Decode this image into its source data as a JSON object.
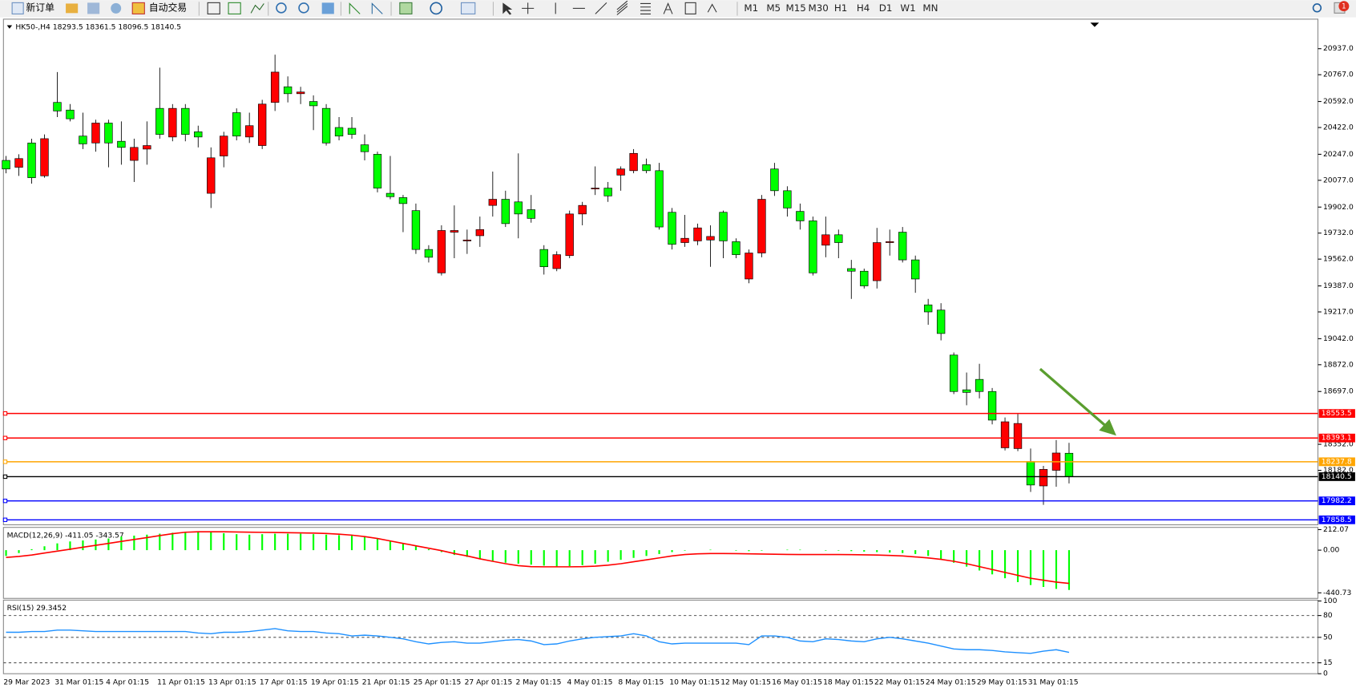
{
  "toolbar": {
    "buttons": [
      "新订单",
      "自动交易"
    ],
    "timeframes": [
      "M1",
      "M5",
      "M15",
      "M30",
      "H1",
      "H4",
      "D1",
      "W1",
      "MN"
    ],
    "badge": 1
  },
  "chart_data": [
    {
      "type": "candlestick",
      "title": "HK50-,H4",
      "categories": [
        "29 Mar 2023",
        null,
        null,
        null,
        "31 Mar 01:15",
        null,
        null,
        null,
        "4 Apr 01:15",
        null,
        null,
        null,
        "11 Apr 01:15",
        null,
        null,
        null,
        "13 Apr 01:15",
        null,
        null,
        null,
        "17 Apr 01:15",
        null,
        null,
        null,
        "19 Apr 01:15",
        null,
        null,
        null,
        "21 Apr 01:15",
        null,
        null,
        null,
        "25 Apr 01:15",
        null,
        null,
        null,
        "27 Apr 01:15",
        null,
        null,
        null,
        "2 May 01:15",
        null,
        null,
        null,
        "4 May 01:15",
        null,
        null,
        null,
        "8 May 01:15",
        null,
        null,
        null,
        "10 May 01:15",
        null,
        null,
        null,
        "12 May 01:15",
        null,
        null,
        null,
        "16 May 01:15",
        null,
        null,
        null,
        "18 May 01:15",
        null,
        null,
        null,
        "22 May 01:15",
        null,
        null,
        null,
        "24 May 01:15",
        null,
        null,
        null,
        "29 May 01:15",
        null,
        null,
        null,
        "31 May 01:15",
        null,
        null,
        null
      ],
      "open": [
        20207,
        20162,
        20321,
        20106,
        20586,
        20536,
        20366,
        20321,
        20451,
        20332,
        20207,
        20281,
        20547,
        20360,
        20547,
        20394,
        19992,
        20236,
        20519,
        20360,
        20304,
        20586,
        20688,
        20643,
        20592,
        20547,
        20422,
        20417,
        20309,
        20247,
        19992,
        19964,
        19879,
        19625,
        19472,
        19738,
        19681,
        19715,
        19913,
        19953,
        19936,
        19885,
        19625,
        19500,
        19585,
        19857,
        20021,
        20026,
        20111,
        20140,
        20179,
        20140,
        19868,
        19670,
        19681,
        19687,
        19868,
        19676,
        19432,
        19602,
        20151,
        20009,
        19874,
        19812,
        19653,
        19721,
        19500,
        19483,
        19421,
        19670,
        19738,
        19557,
        19263,
        19229,
        18935,
        18708,
        18776,
        18697,
        18329,
        18324,
        18239,
        18080,
        18182,
        18293.5
      ],
      "high": [
        20236,
        20247,
        20349,
        20377,
        20784,
        20575,
        20519,
        20473,
        20473,
        20462,
        20349,
        20462,
        20813,
        20575,
        20575,
        20434,
        20292,
        20394,
        20547,
        20519,
        20603,
        20898,
        20756,
        20688,
        20632,
        20575,
        20490,
        20490,
        20377,
        20264,
        20236,
        19981,
        19925,
        19653,
        19783,
        19913,
        19755,
        19840,
        20134,
        20009,
        20253,
        19981,
        19653,
        19613,
        19879,
        19936,
        20168,
        20066,
        20168,
        20281,
        20219,
        20191,
        19896,
        19851,
        19794,
        19783,
        19879,
        19698,
        19625,
        19981,
        20191,
        20038,
        19925,
        19840,
        19840,
        19755,
        19557,
        19500,
        19766,
        19755,
        19772,
        19585,
        19302,
        19274,
        18952,
        18821,
        18878,
        18720,
        18527,
        18550,
        18324,
        18211,
        18380,
        18361.5
      ],
      "low": [
        20123,
        20106,
        20055,
        20094,
        20490,
        20462,
        20281,
        20264,
        20162,
        20179,
        20066,
        20179,
        20349,
        20332,
        20332,
        20292,
        19896,
        20162,
        20338,
        20321,
        20281,
        20530,
        20586,
        20575,
        20405,
        20304,
        20338,
        20349,
        20207,
        19998,
        19953,
        19738,
        19596,
        19540,
        19455,
        19568,
        19596,
        19642,
        19840,
        19772,
        19698,
        19800,
        19461,
        19483,
        19568,
        19783,
        19981,
        19936,
        20009,
        20123,
        20123,
        19755,
        19625,
        19642,
        19653,
        19512,
        19568,
        19568,
        19404,
        19574,
        19975,
        19840,
        19755,
        19455,
        19574,
        19568,
        19302,
        19370,
        19370,
        19585,
        19540,
        19342,
        19133,
        19031,
        18680,
        18607,
        18652,
        18482,
        18312,
        18307,
        18041,
        17956,
        18075,
        18096.5
      ],
      "close": [
        20151,
        20219,
        20094,
        20349,
        20530,
        20479,
        20315,
        20451,
        20321,
        20292,
        20292,
        20304,
        20377,
        20547,
        20377,
        20360,
        20224,
        20366,
        20366,
        20434,
        20575,
        20784,
        20643,
        20654,
        20564,
        20321,
        20366,
        20377,
        20264,
        20026,
        19970,
        19925,
        19625,
        19574,
        19749,
        19749,
        19687,
        19755,
        19953,
        19794,
        19857,
        19828,
        19512,
        19591,
        19857,
        19913,
        20026,
        19975,
        20151,
        20253,
        20140,
        19772,
        19659,
        19698,
        19766,
        19710,
        19681,
        19591,
        19602,
        19953,
        20009,
        19896,
        19812,
        19472,
        19721,
        19670,
        19483,
        19387,
        19670,
        19676,
        19557,
        19432,
        19217,
        19076,
        18697,
        18691,
        18697,
        18510,
        18499,
        18488,
        18086,
        18188,
        18295,
        18140.5
      ],
      "up_color": "#ff0000",
      "down_color": "#00ff00",
      "ylim": [
        17826,
        21130
      ],
      "yticks": [
        {
          "value": 20937,
          "label": "20937.0"
        },
        {
          "value": 20767,
          "label": "20767.0"
        },
        {
          "value": 20592,
          "label": "20592.0"
        },
        {
          "value": 20422,
          "label": "20422.0"
        },
        {
          "value": 20247,
          "label": "20247.0"
        },
        {
          "value": 20077,
          "label": "20077.0"
        },
        {
          "value": 19902,
          "label": "19902.0"
        },
        {
          "value": 19732,
          "label": "19732.0"
        },
        {
          "value": 19562,
          "label": "19562.0"
        },
        {
          "value": 19387,
          "label": "19387.0"
        },
        {
          "value": 19217,
          "label": "19217.0"
        },
        {
          "value": 19042,
          "label": "19042.0"
        },
        {
          "value": 18872,
          "label": "18872.0"
        },
        {
          "value": 18697,
          "label": "18697.0"
        },
        {
          "value": 18352,
          "label": "18352.0"
        },
        {
          "value": 18182,
          "label": "18182.0"
        }
      ],
      "levels": [
        {
          "value": 18553.5,
          "color": "#ff0000"
        },
        {
          "value": 18393.1,
          "color": "#ff0000"
        },
        {
          "value": 18237.8,
          "color": "#ffa500"
        },
        {
          "value": 18140.5,
          "color": "#000000"
        },
        {
          "value": 17982.2,
          "color": "#0000ff"
        },
        {
          "value": 17858.5,
          "color": "#0000ff"
        }
      ]
    },
    {
      "type": "macd",
      "title": "MACD(12,26,9)",
      "series": [
        {
          "name": "MACD",
          "color": "#00ff00",
          "values": [
            -60,
            -30,
            10,
            40,
            70,
            90,
            100,
            110,
            120,
            140,
            150,
            160,
            170,
            180,
            185,
            190,
            185,
            175,
            165,
            160,
            165,
            170,
            170,
            170,
            165,
            160,
            155,
            150,
            140,
            120,
            95,
            70,
            40,
            10,
            -20,
            -50,
            -70,
            -90,
            -110,
            -130,
            -140,
            -150,
            -160,
            -170,
            -165,
            -155,
            -140,
            -120,
            -100,
            -80,
            -60,
            -40,
            -20,
            -5,
            0,
            5,
            0,
            -5,
            -10,
            -5,
            0,
            5,
            5,
            0,
            -5,
            -5,
            -10,
            -15,
            -20,
            -25,
            -30,
            -40,
            -60,
            -90,
            -130,
            -170,
            -210,
            -250,
            -290,
            -330,
            -360,
            -380,
            -400,
            -411.05
          ]
        },
        {
          "name": "Signal",
          "color": "#ff0000",
          "values": [
            -75,
            -65,
            -50,
            -30,
            -10,
            10,
            30,
            50,
            70,
            90,
            110,
            130,
            150,
            170,
            185,
            190,
            190,
            190,
            188,
            186,
            184,
            182,
            180,
            178,
            176,
            172,
            165,
            155,
            140,
            120,
            95,
            70,
            45,
            20,
            -5,
            -35,
            -60,
            -90,
            -115,
            -140,
            -160,
            -170,
            -172,
            -172,
            -172,
            -170,
            -165,
            -155,
            -140,
            -120,
            -100,
            -80,
            -60,
            -45,
            -38,
            -35,
            -35,
            -36,
            -38,
            -40,
            -42,
            -44,
            -45,
            -45,
            -45,
            -45,
            -46,
            -48,
            -50,
            -55,
            -60,
            -70,
            -80,
            -95,
            -115,
            -140,
            -170,
            -200,
            -230,
            -260,
            -290,
            -310,
            -330,
            -343.57
          ]
        }
      ],
      "ylim": [
        -498,
        235
      ],
      "yticks": [
        212.07,
        {
          "value": 0,
          "label": "0.00"
        },
        -440.73
      ]
    },
    {
      "type": "line",
      "title": "RSI(15)",
      "series": [
        {
          "name": "RSI",
          "color": "#1e90ff",
          "values": [
            57,
            57,
            58,
            58,
            60,
            60,
            59,
            58,
            58,
            58,
            58,
            58,
            58,
            58,
            58,
            56,
            55,
            57,
            57,
            58,
            60,
            62,
            59,
            58,
            58,
            56,
            55,
            52,
            53,
            52,
            50,
            48,
            44,
            41,
            43,
            44,
            42,
            42,
            44,
            46,
            47,
            45,
            40,
            41,
            45,
            48,
            50,
            51,
            52,
            55,
            52,
            44,
            41,
            42,
            42,
            42,
            42,
            42,
            40,
            52,
            52,
            50,
            45,
            44,
            48,
            47,
            45,
            44,
            48,
            50,
            48,
            45,
            42,
            38,
            34,
            33,
            33,
            32,
            30,
            29,
            28,
            31,
            33,
            29.3452
          ]
        }
      ],
      "ylim": [
        0,
        100
      ],
      "yticks": [
        100,
        80,
        50,
        15,
        0
      ],
      "levels": [
        80,
        50,
        15
      ]
    }
  ]
}
